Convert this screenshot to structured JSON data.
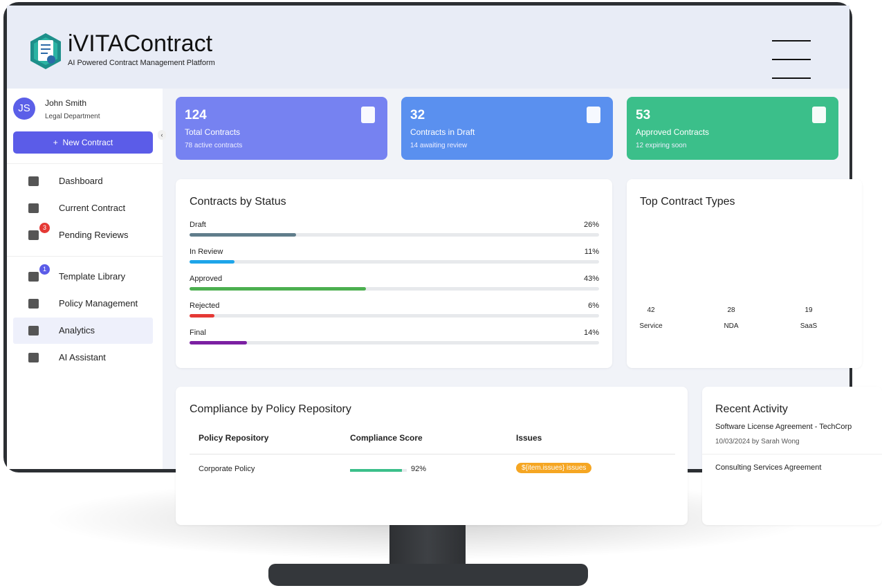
{
  "app": {
    "name": "iVITAContract",
    "tagline": "AI Powered Contract Management Platform"
  },
  "user": {
    "initials": "JS",
    "name": "John Smith",
    "department": "Legal Department"
  },
  "new_contract": "New Contract",
  "nav": [
    {
      "label": "Dashboard"
    },
    {
      "label": "Current Contract"
    },
    {
      "label": "Pending Reviews",
      "badge": 3
    },
    {
      "label": "Template Library",
      "badge": 1
    },
    {
      "label": "Policy Management"
    },
    {
      "label": "Analytics",
      "active": true
    },
    {
      "label": "AI Assistant"
    }
  ],
  "stats": [
    {
      "value": 124,
      "label": "Total Contracts",
      "sub": "78 active contracts",
      "color": "#7682f1"
    },
    {
      "value": 32,
      "label": "Contracts in Draft",
      "sub": "14 awaiting review",
      "color": "#5a90ef"
    },
    {
      "value": 53,
      "label": "Approved Contracts",
      "sub": "12 expiring soon",
      "color": "#3bbf8a"
    }
  ],
  "status": {
    "title": "Contracts by Status",
    "items": [
      {
        "label": "Draft",
        "value": 26,
        "value_label": "26%",
        "color": "#607d8b"
      },
      {
        "label": "In Review",
        "value": 11,
        "value_label": "11%",
        "color": "#1ea5e9"
      },
      {
        "label": "Approved",
        "value": 43,
        "value_label": "43%",
        "color": "#4caf50"
      },
      {
        "label": "Rejected",
        "value": 6,
        "value_label": "6%",
        "color": "#e53935"
      },
      {
        "label": "Final",
        "value": 14,
        "value_label": "14%",
        "color": "#7b1fa2"
      }
    ]
  },
  "types": {
    "title": "Top Contract Types",
    "items": [
      {
        "label": "Service",
        "value": 42
      },
      {
        "label": "NDA",
        "value": 28
      },
      {
        "label": "SaaS",
        "value": 19
      }
    ]
  },
  "compliance": {
    "title": "Compliance by Policy Repository",
    "columns": [
      "Policy Repository",
      "Compliance Score",
      "Issues"
    ],
    "rows": [
      {
        "name": "Corporate Policy",
        "score": 92,
        "score_label": "92%",
        "issues": "${item.issues} issues"
      }
    ]
  },
  "activity": {
    "title": "Recent Activity",
    "items": [
      {
        "title": "Software License Agreement - TechCorp",
        "meta": "10/03/2024 by Sarah Wong"
      },
      {
        "title": "Consulting Services Agreement"
      }
    ]
  }
}
